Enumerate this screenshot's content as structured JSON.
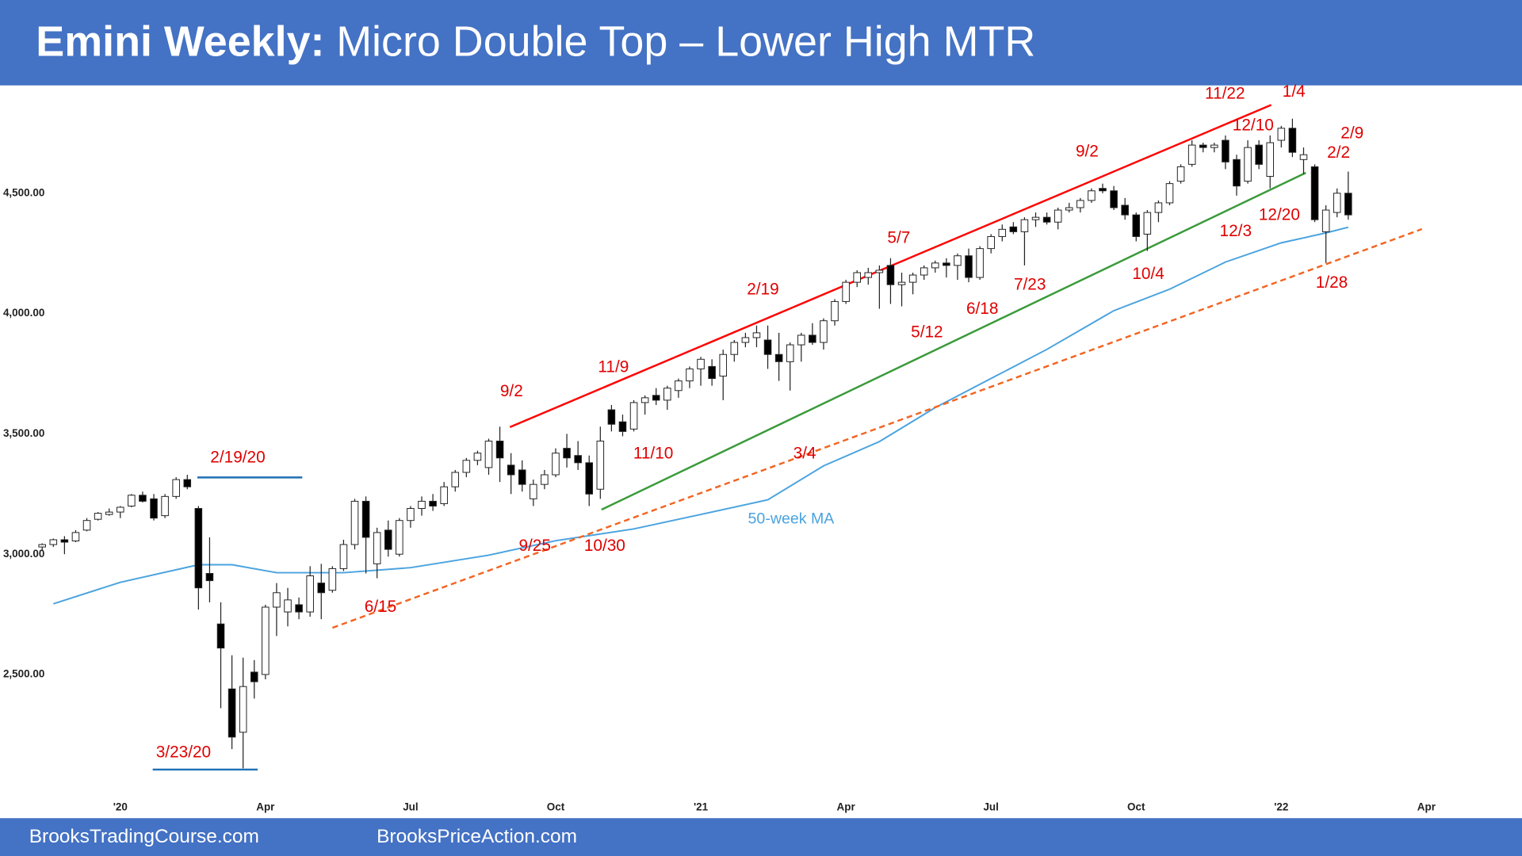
{
  "chart_data": {
    "type": "candlestick",
    "title_prefix": "Emini Weekly:",
    "title": "Micro Double Top – Lower High MTR",
    "footer": [
      "BrooksTradingCourse.com",
      "BrooksPriceAction.com"
    ],
    "xlim": [
      -7.3,
      123
    ],
    "ylim": [
      2016,
      4940
    ],
    "xticks": [
      {
        "value": 0,
        "label": "'20"
      },
      {
        "value": 13,
        "label": "Apr"
      },
      {
        "value": 26,
        "label": "Jul"
      },
      {
        "value": 39,
        "label": "Oct"
      },
      {
        "value": 52,
        "label": "'21"
      },
      {
        "value": 65,
        "label": "Apr"
      },
      {
        "value": 78,
        "label": "Jul"
      },
      {
        "value": 91,
        "label": "Oct"
      },
      {
        "value": 104,
        "label": "'22"
      },
      {
        "value": 117,
        "label": "Apr"
      }
    ],
    "yticks": [
      {
        "value": 2500,
        "label": "2,500.00"
      },
      {
        "value": 3000,
        "label": "3,000.00"
      },
      {
        "value": 3500,
        "label": "3,500.00"
      },
      {
        "value": 4000,
        "label": "4,000.00"
      },
      {
        "value": 4500,
        "label": "4,500.00"
      }
    ],
    "up_color": "#ffffff",
    "down_color": "#000000",
    "candles": {
      "x": [
        -7,
        -6,
        -5,
        -4,
        -3,
        -2,
        -1,
        0,
        1,
        2,
        3,
        4,
        5,
        6,
        7,
        8,
        9,
        10,
        11,
        12,
        13,
        14,
        15,
        16,
        17,
        18,
        19,
        20,
        21,
        22,
        23,
        24,
        25,
        26,
        27,
        28,
        29,
        30,
        31,
        32,
        33,
        34,
        35,
        36,
        37,
        38,
        39,
        40,
        41,
        42,
        43,
        44,
        45,
        46,
        47,
        48,
        49,
        50,
        51,
        52,
        53,
        54,
        55,
        56,
        57,
        58,
        59,
        60,
        61,
        62,
        63,
        64,
        65,
        66,
        67,
        68,
        69,
        70,
        71,
        72,
        73,
        74,
        75,
        76,
        77,
        78,
        79,
        80,
        81,
        82,
        83,
        84,
        85,
        86,
        87,
        88,
        89,
        90,
        91,
        92,
        93,
        94,
        95,
        96,
        97,
        98,
        99,
        100,
        101,
        102,
        103,
        104,
        105,
        106,
        107,
        108,
        109,
        110
      ],
      "open": [
        3030,
        3040,
        3060,
        3055,
        3100,
        3145,
        3165,
        3175,
        3200,
        3245,
        3230,
        3160,
        3240,
        3310,
        3190,
        2920,
        2710,
        2440,
        2260,
        2510,
        2500,
        2780,
        2760,
        2790,
        2760,
        2880,
        2850,
        2940,
        3040,
        3220,
        2960,
        3100,
        3000,
        3140,
        3190,
        3220,
        3210,
        3280,
        3340,
        3390,
        3360,
        3470,
        3370,
        3350,
        3230,
        3290,
        3330,
        3440,
        3410,
        3380,
        3270,
        3600,
        3550,
        3520,
        3630,
        3660,
        3640,
        3680,
        3720,
        3770,
        3780,
        3740,
        3830,
        3880,
        3900,
        3890,
        3830,
        3800,
        3870,
        3910,
        3880,
        3970,
        4050,
        4130,
        4150,
        4170,
        4200,
        4120,
        4130,
        4160,
        4190,
        4210,
        4200,
        4240,
        4150,
        4270,
        4320,
        4360,
        4340,
        4390,
        4400,
        4380,
        4430,
        4440,
        4470,
        4520,
        4510,
        4450,
        4410,
        4330,
        4420,
        4460,
        4550,
        4620,
        4700,
        4690,
        4720,
        4640,
        4550,
        4700,
        4570,
        4720,
        4770,
        4640,
        4610,
        4340,
        4420,
        4500
      ],
      "high": [
        3045,
        3065,
        3075,
        3100,
        3150,
        3175,
        3190,
        3200,
        3250,
        3260,
        3250,
        3250,
        3320,
        3330,
        3200,
        3070,
        2800,
        2580,
        2570,
        2560,
        2790,
        2880,
        2860,
        2820,
        2950,
        2960,
        2950,
        3060,
        3230,
        3240,
        3110,
        3140,
        3150,
        3200,
        3240,
        3250,
        3300,
        3350,
        3400,
        3430,
        3480,
        3530,
        3420,
        3390,
        3310,
        3350,
        3440,
        3500,
        3470,
        3410,
        3530,
        3620,
        3580,
        3640,
        3660,
        3690,
        3700,
        3730,
        3780,
        3820,
        3810,
        3850,
        3890,
        3920,
        3950,
        3950,
        3920,
        3880,
        3920,
        3960,
        3980,
        4060,
        4140,
        4180,
        4190,
        4200,
        4230,
        4170,
        4170,
        4200,
        4220,
        4230,
        4250,
        4270,
        4280,
        4330,
        4370,
        4380,
        4400,
        4420,
        4420,
        4440,
        4460,
        4480,
        4520,
        4540,
        4530,
        4480,
        4420,
        4430,
        4470,
        4550,
        4620,
        4720,
        4710,
        4710,
        4740,
        4660,
        4720,
        4720,
        4740,
        4780,
        4810,
        4690,
        4620,
        4450,
        4520,
        4590
      ],
      "low": [
        3015,
        3030,
        3000,
        3050,
        3095,
        3140,
        3160,
        3150,
        3195,
        3215,
        3140,
        3150,
        3230,
        3270,
        2770,
        2800,
        2360,
        2190,
        2110,
        2400,
        2480,
        2660,
        2700,
        2730,
        2740,
        2730,
        2840,
        2930,
        3020,
        2920,
        2900,
        2990,
        2990,
        3110,
        3160,
        3180,
        3200,
        3260,
        3320,
        3370,
        3330,
        3300,
        3250,
        3260,
        3200,
        3270,
        3320,
        3360,
        3350,
        3200,
        3230,
        3510,
        3490,
        3510,
        3580,
        3620,
        3600,
        3650,
        3690,
        3700,
        3700,
        3640,
        3800,
        3860,
        3860,
        3770,
        3720,
        3680,
        3800,
        3870,
        3850,
        3950,
        4040,
        4110,
        4120,
        4020,
        4040,
        4030,
        4080,
        4140,
        4170,
        4150,
        4140,
        4130,
        4140,
        4250,
        4300,
        4330,
        4200,
        4360,
        4370,
        4350,
        4420,
        4420,
        4460,
        4500,
        4430,
        4390,
        4300,
        4260,
        4380,
        4450,
        4540,
        4610,
        4670,
        4670,
        4600,
        4490,
        4540,
        4600,
        4520,
        4690,
        4650,
        4580,
        4380,
        4210,
        4400,
        4390
      ],
      "close": [
        3040,
        3060,
        3050,
        3090,
        3140,
        3170,
        3175,
        3195,
        3245,
        3220,
        3150,
        3240,
        3310,
        3280,
        2860,
        2890,
        2610,
        2240,
        2450,
        2470,
        2780,
        2840,
        2810,
        2760,
        2910,
        2840,
        2940,
        3040,
        3220,
        3070,
        3090,
        3020,
        3140,
        3190,
        3220,
        3200,
        3280,
        3340,
        3390,
        3420,
        3470,
        3400,
        3330,
        3290,
        3290,
        3330,
        3420,
        3400,
        3380,
        3250,
        3470,
        3540,
        3510,
        3630,
        3650,
        3640,
        3690,
        3720,
        3770,
        3810,
        3730,
        3830,
        3880,
        3900,
        3920,
        3830,
        3800,
        3870,
        3910,
        3880,
        3970,
        4050,
        4130,
        4170,
        4170,
        4180,
        4120,
        4130,
        4160,
        4190,
        4210,
        4200,
        4240,
        4150,
        4270,
        4320,
        4350,
        4340,
        4390,
        4400,
        4380,
        4430,
        4440,
        4470,
        4510,
        4510,
        4440,
        4410,
        4320,
        4420,
        4460,
        4540,
        4610,
        4700,
        4690,
        4700,
        4630,
        4530,
        4690,
        4620,
        4710,
        4770,
        4670,
        4660,
        4390,
        4430,
        4500,
        4410
      ]
    },
    "ma": {
      "name": "50-week MA",
      "color": "#4aa3df",
      "x": [
        -6,
        0,
        7,
        10,
        14,
        20,
        26,
        33,
        39,
        46,
        52,
        58,
        63,
        68,
        73,
        78,
        83,
        89,
        94,
        99,
        104,
        108,
        110
      ],
      "values": [
        2794,
        2883,
        2956,
        2956,
        2923,
        2923,
        2944,
        2996,
        3056,
        3105,
        3165,
        3226,
        3367,
        3468,
        3609,
        3730,
        3851,
        4012,
        4101,
        4214,
        4294,
        4335,
        4359
      ]
    },
    "lines": [
      {
        "color": "#ff0000",
        "dash": false,
        "x": [
          34.9,
          103.1
        ],
        "values": [
          3528,
          4867
        ]
      },
      {
        "color": "#3a9a3a",
        "dash": false,
        "x": [
          43.1,
          106.2
        ],
        "values": [
          3185,
          4585
        ]
      },
      {
        "color": "#f26522",
        "dash": true,
        "x": [
          19,
          116.6
        ],
        "values": [
          2694,
          4351
        ]
      },
      {
        "color": "#1f6fb5",
        "dash": false,
        "x": [
          6.9,
          16.3
        ],
        "values": [
          3319,
          3319
        ]
      },
      {
        "color": "#1f6fb5",
        "dash": false,
        "x": [
          2.9,
          12.3
        ],
        "values": [
          2105,
          2105
        ]
      }
    ],
    "annotation_color": "#e00000",
    "annotations": [
      "2/19/20",
      "3/23/20",
      "6/15",
      "9/25",
      "10/30",
      "9/2",
      "11/9",
      "11/10",
      "3/4",
      "2/19",
      "5/7",
      "5/12",
      "6/18",
      "7/23",
      "9/2",
      "10/4",
      "11/22",
      "1/4",
      "12/10",
      "2/9",
      "2/2",
      "12/20",
      "12/3",
      "1/28"
    ]
  }
}
